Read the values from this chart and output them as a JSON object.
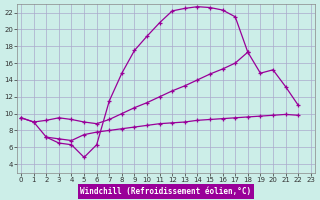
{
  "xlabel": "Windchill (Refroidissement éolien,°C)",
  "background_color": "#cceee8",
  "grid_color": "#aaaacc",
  "line_color": "#990099",
  "curve1_x": [
    0,
    1,
    2,
    3,
    4,
    5,
    6,
    7,
    8,
    9,
    10,
    11,
    12,
    13,
    14,
    15,
    16,
    17,
    18
  ],
  "curve1_y": [
    9.5,
    9.0,
    7.2,
    6.5,
    6.3,
    4.8,
    6.3,
    11.5,
    14.8,
    17.5,
    19.2,
    20.8,
    22.2,
    22.5,
    22.7,
    22.6,
    22.3,
    21.5,
    17.3
  ],
  "curve2_x": [
    0,
    1,
    2,
    3,
    4,
    5,
    6,
    7,
    8,
    9,
    10,
    11,
    12,
    13,
    14,
    15,
    16,
    17,
    18,
    19,
    20,
    21,
    22
  ],
  "curve2_y": [
    9.5,
    9.0,
    9.2,
    9.5,
    9.3,
    9.0,
    8.8,
    9.3,
    10.0,
    10.7,
    11.3,
    12.0,
    12.7,
    13.3,
    14.0,
    14.7,
    15.3,
    16.0,
    17.3,
    14.8,
    15.2,
    13.2,
    11.0
  ],
  "curve3_x": [
    2,
    3,
    4,
    5,
    6,
    7,
    8,
    9,
    10,
    11,
    12,
    13,
    14,
    15,
    16,
    17,
    18,
    19,
    20,
    21,
    22
  ],
  "curve3_y": [
    7.2,
    7.0,
    6.8,
    7.5,
    7.8,
    8.0,
    8.2,
    8.4,
    8.6,
    8.8,
    8.9,
    9.0,
    9.2,
    9.3,
    9.4,
    9.5,
    9.6,
    9.7,
    9.8,
    9.9,
    9.8
  ],
  "ylim": [
    3,
    23
  ],
  "xlim": [
    -0.3,
    23.3
  ],
  "yticks": [
    4,
    6,
    8,
    10,
    12,
    14,
    16,
    18,
    20,
    22
  ],
  "xticks": [
    0,
    1,
    2,
    3,
    4,
    5,
    6,
    7,
    8,
    9,
    10,
    11,
    12,
    13,
    14,
    15,
    16,
    17,
    18,
    19,
    20,
    21,
    22,
    23
  ],
  "tick_fontsize": 5,
  "xlabel_fontsize": 5.5,
  "linewidth": 0.9,
  "markersize": 3.5,
  "figsize": [
    3.2,
    2.0
  ],
  "dpi": 100
}
